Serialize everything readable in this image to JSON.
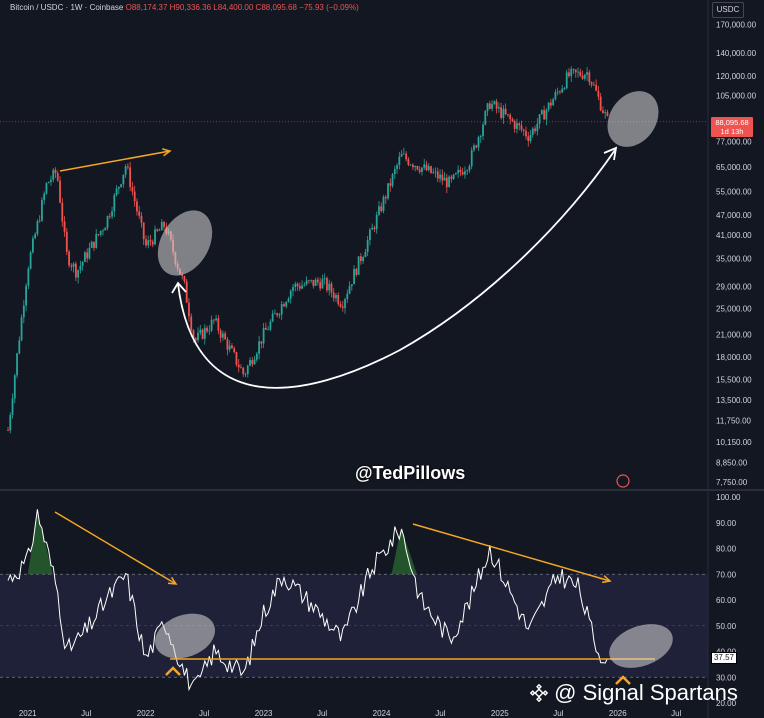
{
  "header": {
    "symbol": "Bitcoin / USDC · 1W · Coinbase",
    "open": "O88,174.37",
    "high": "H90,336.36",
    "low": "L84,400.00",
    "close": "C88,095.68",
    "change": "−75.93 (−0.09%)",
    "currency": "USDC"
  },
  "watermark": {
    "handle": "@TedPillows",
    "brand": "@ Signal Spartans"
  },
  "price_tag": {
    "price": "88,095.68",
    "countdown": "1d 13h"
  },
  "rsi_tag": "37.57",
  "colors": {
    "background": "#131722",
    "up": "#26a69a",
    "down": "#ef5350",
    "rsi_line": "#ffffff",
    "rsi_band": "#2a2a4a",
    "annotation": "#f5a623"
  },
  "chart_data": [
    {
      "type": "candlestick",
      "title": "",
      "scale": "log",
      "y_tick_labels": [
        "170,000.00",
        "140,000.00",
        "120,000.00",
        "105,000.00",
        "77,000.00",
        "65,000.00",
        "55,000.00",
        "47,000.00",
        "41,000.00",
        "35,000.00",
        "29,000.00",
        "25,000.00",
        "21,000.00",
        "18,000.00",
        "15,500.00",
        "13,500.00",
        "11,750.00",
        "10,150.00",
        "8,850.00",
        "7,750.00"
      ],
      "y_ticks": [
        170000,
        140000,
        120000,
        105000,
        77000,
        65000,
        55000,
        47000,
        41000,
        35000,
        29000,
        25000,
        21000,
        18000,
        15500,
        13500,
        11750,
        10150,
        8850,
        7750
      ],
      "ylim": [
        7500,
        175000
      ],
      "x_tick_labels": [
        "2021",
        "Jul",
        "2022",
        "Jul",
        "2023",
        "Jul",
        "2024",
        "Jul",
        "2025",
        "Jul",
        "2026",
        "Jul"
      ],
      "last_price": 88095.68,
      "series_path": [
        [
          "2020-11",
          11000
        ],
        [
          "2021-01",
          33000
        ],
        [
          "2021-03",
          58000
        ],
        [
          "2021-04",
          63000
        ],
        [
          "2021-05",
          36000
        ],
        [
          "2021-06",
          32000
        ],
        [
          "2021-09",
          45000
        ],
        [
          "2021-11",
          66000
        ],
        [
          "2022-01",
          38000
        ],
        [
          "2022-03",
          44000
        ],
        [
          "2022-05",
          29000
        ],
        [
          "2022-06",
          20000
        ],
        [
          "2022-08",
          23000
        ],
        [
          "2022-11",
          16000
        ],
        [
          "2023-01",
          21000
        ],
        [
          "2023-04",
          29000
        ],
        [
          "2023-07",
          30000
        ],
        [
          "2023-09",
          26000
        ],
        [
          "2023-12",
          42000
        ],
        [
          "2024-03",
          70000
        ],
        [
          "2024-08",
          58000
        ],
        [
          "2024-10",
          68000
        ],
        [
          "2024-12",
          100000
        ],
        [
          "2025-04",
          80000
        ],
        [
          "2025-08",
          120000
        ],
        [
          "2025-10",
          123000
        ],
        [
          "2025-12",
          88000
        ]
      ]
    },
    {
      "type": "line",
      "title": "",
      "y_tick_labels": [
        "100.00",
        "90.00",
        "80.00",
        "70.00",
        "60.00",
        "50.00",
        "40.00",
        "30.00",
        "20.00"
      ],
      "y_ticks": [
        100,
        90,
        80,
        70,
        60,
        50,
        40,
        30,
        20
      ],
      "ylim": [
        20,
        100
      ],
      "band": [
        30,
        70
      ],
      "x_tick_labels": [
        "2021",
        "Jul",
        "2022",
        "Jul",
        "2023",
        "Jul",
        "2024",
        "Jul",
        "2025",
        "Jul",
        "2026",
        "Jul"
      ],
      "last_value": 37.57,
      "series_path": [
        [
          "2020-11",
          68
        ],
        [
          "2021-01",
          75
        ],
        [
          "2021-02",
          94
        ],
        [
          "2021-04",
          65
        ],
        [
          "2021-05",
          40
        ],
        [
          "2021-07",
          48
        ],
        [
          "2021-09",
          60
        ],
        [
          "2021-11",
          70
        ],
        [
          "2022-01",
          37
        ],
        [
          "2022-03",
          52
        ],
        [
          "2022-05",
          32
        ],
        [
          "2022-06",
          25
        ],
        [
          "2022-08",
          40
        ],
        [
          "2022-11",
          31
        ],
        [
          "2023-01",
          55
        ],
        [
          "2023-03",
          70
        ],
        [
          "2023-06",
          58
        ],
        [
          "2023-09",
          45
        ],
        [
          "2023-12",
          72
        ],
        [
          "2024-03",
          88
        ],
        [
          "2024-05",
          60
        ],
        [
          "2024-08",
          45
        ],
        [
          "2024-10",
          60
        ],
        [
          "2024-12",
          80
        ],
        [
          "2025-04",
          48
        ],
        [
          "2025-07",
          70
        ],
        [
          "2025-09",
          65
        ],
        [
          "2025-11",
          40
        ],
        [
          "2025-12",
          37.57
        ]
      ]
    }
  ]
}
